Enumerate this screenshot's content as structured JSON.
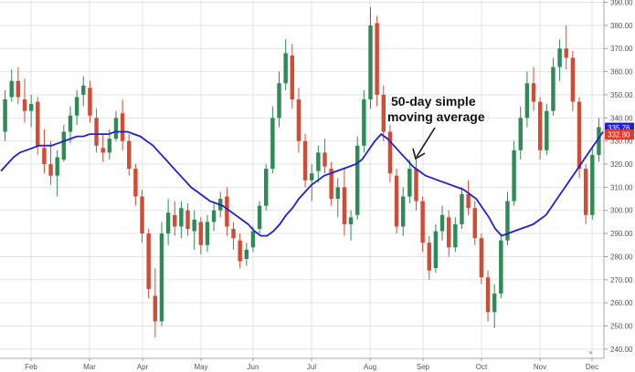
{
  "chart_data": {
    "type": "candlestick",
    "title": "",
    "annotation": {
      "lines": [
        "50-day simple",
        "moving average"
      ]
    },
    "y_axis": {
      "position": "right",
      "ylim": [
        236,
        391
      ],
      "ticks": [
        "240.00",
        "250.00",
        "260.00",
        "270.00",
        "280.00",
        "290.00",
        "300.00",
        "310.00",
        "320.00",
        "330.00",
        "340.00",
        "350.00",
        "360.00",
        "370.00",
        "380.00",
        "390.00"
      ]
    },
    "x_axis": {
      "labels": [
        "Feb",
        "Mar",
        "Apr",
        "May",
        "Jun",
        "Jul",
        "Aug",
        "Sep",
        "Oct",
        "Nov",
        "Dec"
      ],
      "grid": true
    },
    "price_badges": [
      {
        "value": "335.76",
        "color": "#1f1fd6"
      },
      {
        "value": "332.80",
        "color": "#e03a2b"
      }
    ],
    "colors": {
      "up": "#2e8b57",
      "down": "#d14b35",
      "moving_average": "#1f1fd6",
      "grid": "#e3e3e3"
    },
    "candles": [
      {
        "o": 334,
        "h": 352,
        "l": 330,
        "c": 348
      },
      {
        "o": 349,
        "h": 361,
        "l": 347,
        "c": 356
      },
      {
        "o": 356,
        "h": 362,
        "l": 346,
        "c": 349
      },
      {
        "o": 348,
        "h": 357,
        "l": 338,
        "c": 343
      },
      {
        "o": 343,
        "h": 350,
        "l": 336,
        "c": 346
      },
      {
        "o": 347,
        "h": 349,
        "l": 324,
        "c": 328
      },
      {
        "o": 327,
        "h": 335,
        "l": 316,
        "c": 320
      },
      {
        "o": 320,
        "h": 330,
        "l": 311,
        "c": 315
      },
      {
        "o": 315,
        "h": 326,
        "l": 306,
        "c": 323
      },
      {
        "o": 322,
        "h": 337,
        "l": 321,
        "c": 334
      },
      {
        "o": 334,
        "h": 345,
        "l": 329,
        "c": 341
      },
      {
        "o": 341,
        "h": 352,
        "l": 337,
        "c": 349
      },
      {
        "o": 350,
        "h": 358,
        "l": 345,
        "c": 354
      },
      {
        "o": 353,
        "h": 356,
        "l": 338,
        "c": 341
      },
      {
        "o": 340,
        "h": 344,
        "l": 325,
        "c": 328
      },
      {
        "o": 327,
        "h": 333,
        "l": 321,
        "c": 325
      },
      {
        "o": 325,
        "h": 335,
        "l": 322,
        "c": 331
      },
      {
        "o": 331,
        "h": 343,
        "l": 330,
        "c": 340
      },
      {
        "o": 342,
        "h": 348,
        "l": 326,
        "c": 330
      },
      {
        "o": 330,
        "h": 333,
        "l": 315,
        "c": 318
      },
      {
        "o": 318,
        "h": 320,
        "l": 302,
        "c": 306
      },
      {
        "o": 306,
        "h": 309,
        "l": 286,
        "c": 290
      },
      {
        "o": 290,
        "h": 292,
        "l": 262,
        "c": 266
      },
      {
        "o": 263,
        "h": 275,
        "l": 245,
        "c": 252
      },
      {
        "o": 252,
        "h": 295,
        "l": 250,
        "c": 290
      },
      {
        "o": 290,
        "h": 305,
        "l": 285,
        "c": 299
      },
      {
        "o": 298,
        "h": 304,
        "l": 289,
        "c": 293
      },
      {
        "o": 293,
        "h": 304,
        "l": 288,
        "c": 301
      },
      {
        "o": 300,
        "h": 303,
        "l": 289,
        "c": 292
      },
      {
        "o": 291,
        "h": 300,
        "l": 283,
        "c": 296
      },
      {
        "o": 295,
        "h": 297,
        "l": 281,
        "c": 285
      },
      {
        "o": 285,
        "h": 298,
        "l": 282,
        "c": 295
      },
      {
        "o": 295,
        "h": 303,
        "l": 291,
        "c": 300
      },
      {
        "o": 300,
        "h": 308,
        "l": 297,
        "c": 305
      },
      {
        "o": 306,
        "h": 310,
        "l": 289,
        "c": 293
      },
      {
        "o": 292,
        "h": 295,
        "l": 283,
        "c": 288
      },
      {
        "o": 287,
        "h": 290,
        "l": 275,
        "c": 278
      },
      {
        "o": 279,
        "h": 286,
        "l": 276,
        "c": 283
      },
      {
        "o": 284,
        "h": 293,
        "l": 282,
        "c": 291
      },
      {
        "o": 292,
        "h": 304,
        "l": 290,
        "c": 302
      },
      {
        "o": 302,
        "h": 320,
        "l": 300,
        "c": 318
      },
      {
        "o": 318,
        "h": 345,
        "l": 316,
        "c": 340
      },
      {
        "o": 340,
        "h": 360,
        "l": 336,
        "c": 355
      },
      {
        "o": 355,
        "h": 374,
        "l": 352,
        "c": 368
      },
      {
        "o": 367,
        "h": 372,
        "l": 344,
        "c": 348
      },
      {
        "o": 348,
        "h": 353,
        "l": 325,
        "c": 330
      },
      {
        "o": 330,
        "h": 333,
        "l": 310,
        "c": 313
      },
      {
        "o": 313,
        "h": 320,
        "l": 304,
        "c": 316
      },
      {
        "o": 317,
        "h": 328,
        "l": 312,
        "c": 325
      },
      {
        "o": 325,
        "h": 331,
        "l": 316,
        "c": 319
      },
      {
        "o": 318,
        "h": 321,
        "l": 302,
        "c": 305
      },
      {
        "o": 305,
        "h": 314,
        "l": 297,
        "c": 310
      },
      {
        "o": 310,
        "h": 318,
        "l": 289,
        "c": 294
      },
      {
        "o": 294,
        "h": 300,
        "l": 287,
        "c": 297
      },
      {
        "o": 298,
        "h": 332,
        "l": 296,
        "c": 328
      },
      {
        "o": 328,
        "h": 352,
        "l": 325,
        "c": 348
      },
      {
        "o": 348,
        "h": 388,
        "l": 344,
        "c": 380
      },
      {
        "o": 381,
        "h": 384,
        "l": 345,
        "c": 350
      },
      {
        "o": 350,
        "h": 354,
        "l": 330,
        "c": 334
      },
      {
        "o": 334,
        "h": 337,
        "l": 312,
        "c": 316
      },
      {
        "o": 315,
        "h": 318,
        "l": 290,
        "c": 293
      },
      {
        "o": 293,
        "h": 310,
        "l": 289,
        "c": 306
      },
      {
        "o": 306,
        "h": 322,
        "l": 303,
        "c": 318
      },
      {
        "o": 318,
        "h": 322,
        "l": 300,
        "c": 304
      },
      {
        "o": 304,
        "h": 306,
        "l": 282,
        "c": 286
      },
      {
        "o": 286,
        "h": 289,
        "l": 270,
        "c": 274
      },
      {
        "o": 275,
        "h": 294,
        "l": 273,
        "c": 291
      },
      {
        "o": 291,
        "h": 302,
        "l": 287,
        "c": 298
      },
      {
        "o": 297,
        "h": 300,
        "l": 280,
        "c": 284
      },
      {
        "o": 284,
        "h": 297,
        "l": 282,
        "c": 294
      },
      {
        "o": 294,
        "h": 310,
        "l": 292,
        "c": 307
      },
      {
        "o": 307,
        "h": 313,
        "l": 298,
        "c": 301
      },
      {
        "o": 301,
        "h": 304,
        "l": 285,
        "c": 288
      },
      {
        "o": 288,
        "h": 290,
        "l": 268,
        "c": 271
      },
      {
        "o": 271,
        "h": 274,
        "l": 252,
        "c": 256
      },
      {
        "o": 256,
        "h": 268,
        "l": 249,
        "c": 264
      },
      {
        "o": 264,
        "h": 290,
        "l": 262,
        "c": 287
      },
      {
        "o": 287,
        "h": 308,
        "l": 285,
        "c": 304
      },
      {
        "o": 304,
        "h": 330,
        "l": 302,
        "c": 326
      },
      {
        "o": 326,
        "h": 345,
        "l": 322,
        "c": 340
      },
      {
        "o": 340,
        "h": 360,
        "l": 336,
        "c": 355
      },
      {
        "o": 355,
        "h": 362,
        "l": 343,
        "c": 347
      },
      {
        "o": 347,
        "h": 349,
        "l": 322,
        "c": 326
      },
      {
        "o": 326,
        "h": 346,
        "l": 324,
        "c": 343
      },
      {
        "o": 343,
        "h": 366,
        "l": 341,
        "c": 362
      },
      {
        "o": 362,
        "h": 374,
        "l": 356,
        "c": 370
      },
      {
        "o": 370,
        "h": 380,
        "l": 361,
        "c": 366
      },
      {
        "o": 366,
        "h": 369,
        "l": 343,
        "c": 347
      },
      {
        "o": 347,
        "h": 349,
        "l": 314,
        "c": 318
      },
      {
        "o": 318,
        "h": 320,
        "l": 294,
        "c": 298
      },
      {
        "o": 298,
        "h": 327,
        "l": 296,
        "c": 324
      },
      {
        "o": 324,
        "h": 340,
        "l": 321,
        "c": 336
      }
    ],
    "moving_average": [
      317,
      320,
      323,
      325,
      326,
      327,
      328,
      328,
      328,
      329,
      330,
      331,
      332,
      332,
      333,
      333,
      333,
      333,
      334,
      334,
      334,
      333,
      332,
      330,
      328,
      325,
      322,
      319,
      316,
      313,
      310,
      308,
      306,
      304,
      303,
      302,
      300,
      298,
      296,
      294,
      291,
      289,
      289,
      291,
      294,
      298,
      301,
      305,
      308,
      311,
      313,
      315,
      316,
      317,
      318,
      319,
      320,
      322,
      326,
      330,
      333,
      331,
      328,
      325,
      322,
      319,
      317,
      315,
      314,
      313,
      312,
      311,
      310,
      309,
      307,
      305,
      301,
      297,
      292,
      289,
      290,
      291,
      292,
      293,
      294,
      296,
      298,
      302,
      306,
      310,
      314,
      318,
      322,
      326,
      330,
      334
    ]
  }
}
